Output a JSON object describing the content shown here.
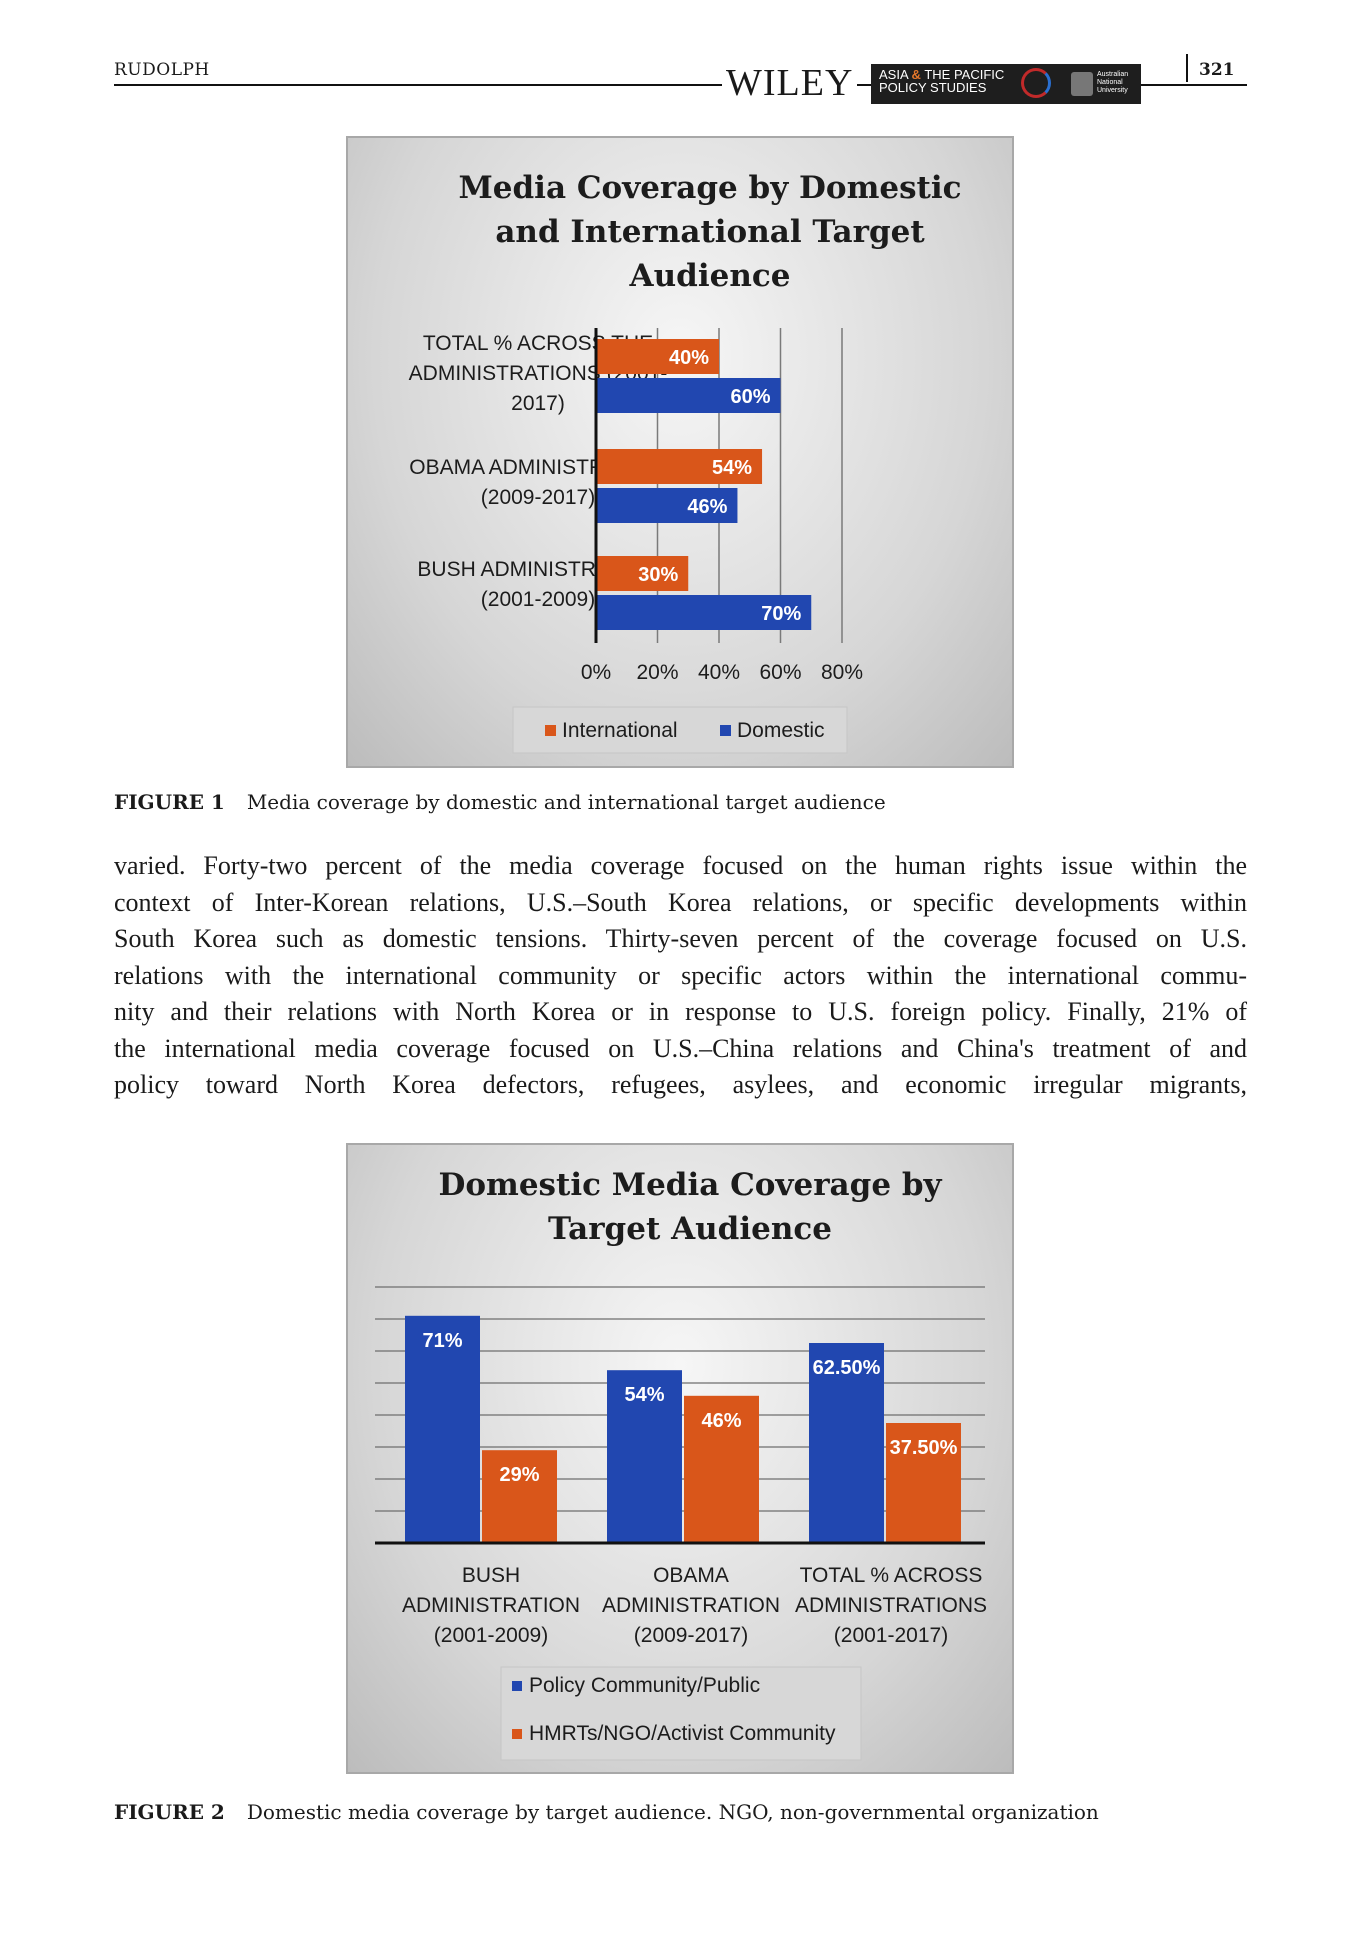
{
  "header": {
    "running_head": "RUDOLPH",
    "publisher": "WILEY",
    "journal_line1": "ASIA",
    "journal_amp": "&",
    "journal_line1b": "THE PACIFIC",
    "journal_line2": "POLICY STUDIES",
    "university_line1": "Australian",
    "university_line2": "National",
    "university_line3": "University",
    "page_number": "321"
  },
  "figure1": {
    "caption_label": "FIGURE 1",
    "caption_text": "Media coverage by domestic and international target audience",
    "chart_data": {
      "type": "bar",
      "orientation": "horizontal",
      "title_lines": [
        "Media Coverage by Domestic",
        "and International Target",
        "Audience"
      ],
      "categories": [
        [
          "TOTAL % ACROSS THE",
          "ADMINISTRATIONS (2001-",
          "2017)"
        ],
        [
          "OBAMA ADMINISTRATION",
          "(2009-2017)"
        ],
        [
          "BUSH ADMINISTRATION",
          "(2001-2009)"
        ]
      ],
      "series": [
        {
          "name": "International",
          "color": "#d9561a",
          "values": [
            40,
            54,
            30
          ],
          "labels": [
            "40%",
            "54%",
            "30%"
          ]
        },
        {
          "name": "Domestic",
          "color": "#2147b0",
          "values": [
            60,
            46,
            70
          ],
          "labels": [
            "60%",
            "46%",
            "70%"
          ]
        }
      ],
      "xlim": [
        0,
        80
      ],
      "ticks": [
        "0%",
        "20%",
        "40%",
        "60%",
        "80%"
      ],
      "grid": true,
      "legend_position": "bottom"
    }
  },
  "body_lines": [
    "varied. Forty-two percent of the media coverage focused on the human rights issue within the",
    "context of Inter-Korean relations, U.S.–South Korea relations, or specific developments within",
    "South Korea such as domestic tensions. Thirty-seven percent of the coverage focused on U.S.",
    "relations with the international community or specific actors within the international commu-",
    "nity and their relations with North Korea or in response to U.S. foreign policy. Finally, 21% of",
    "the international media coverage focused on U.S.–China relations and China's treatment of and",
    "policy toward North Korea defectors, refugees, asylees, and economic irregular migrants,"
  ],
  "figure2": {
    "caption_label": "FIGURE 2",
    "caption_text": "Domestic media coverage by target audience. NGO, non-governmental organization",
    "chart_data": {
      "type": "bar",
      "orientation": "vertical",
      "title_lines": [
        "Domestic Media Coverage by",
        "Target Audience"
      ],
      "categories": [
        [
          "BUSH",
          "ADMINISTRATION",
          "(2001-2009)"
        ],
        [
          "OBAMA",
          "ADMINISTRATION",
          "(2009-2017)"
        ],
        [
          "TOTAL % ACROSS",
          "ADMINISTRATIONS",
          "(2001-2017)"
        ]
      ],
      "series": [
        {
          "name": "Policy Community/Public",
          "color": "#2147b0",
          "values": [
            71,
            54,
            62.5
          ],
          "labels": [
            "71%",
            "54%",
            "62.50%"
          ]
        },
        {
          "name": "HMRTs/NGO/Activist Community",
          "color": "#d9561a",
          "values": [
            29,
            46,
            37.5
          ],
          "labels": [
            "29%",
            "46%",
            "37.50%"
          ]
        }
      ],
      "ylim": [
        0,
        80
      ],
      "grid": true,
      "legend_position": "bottom"
    }
  }
}
